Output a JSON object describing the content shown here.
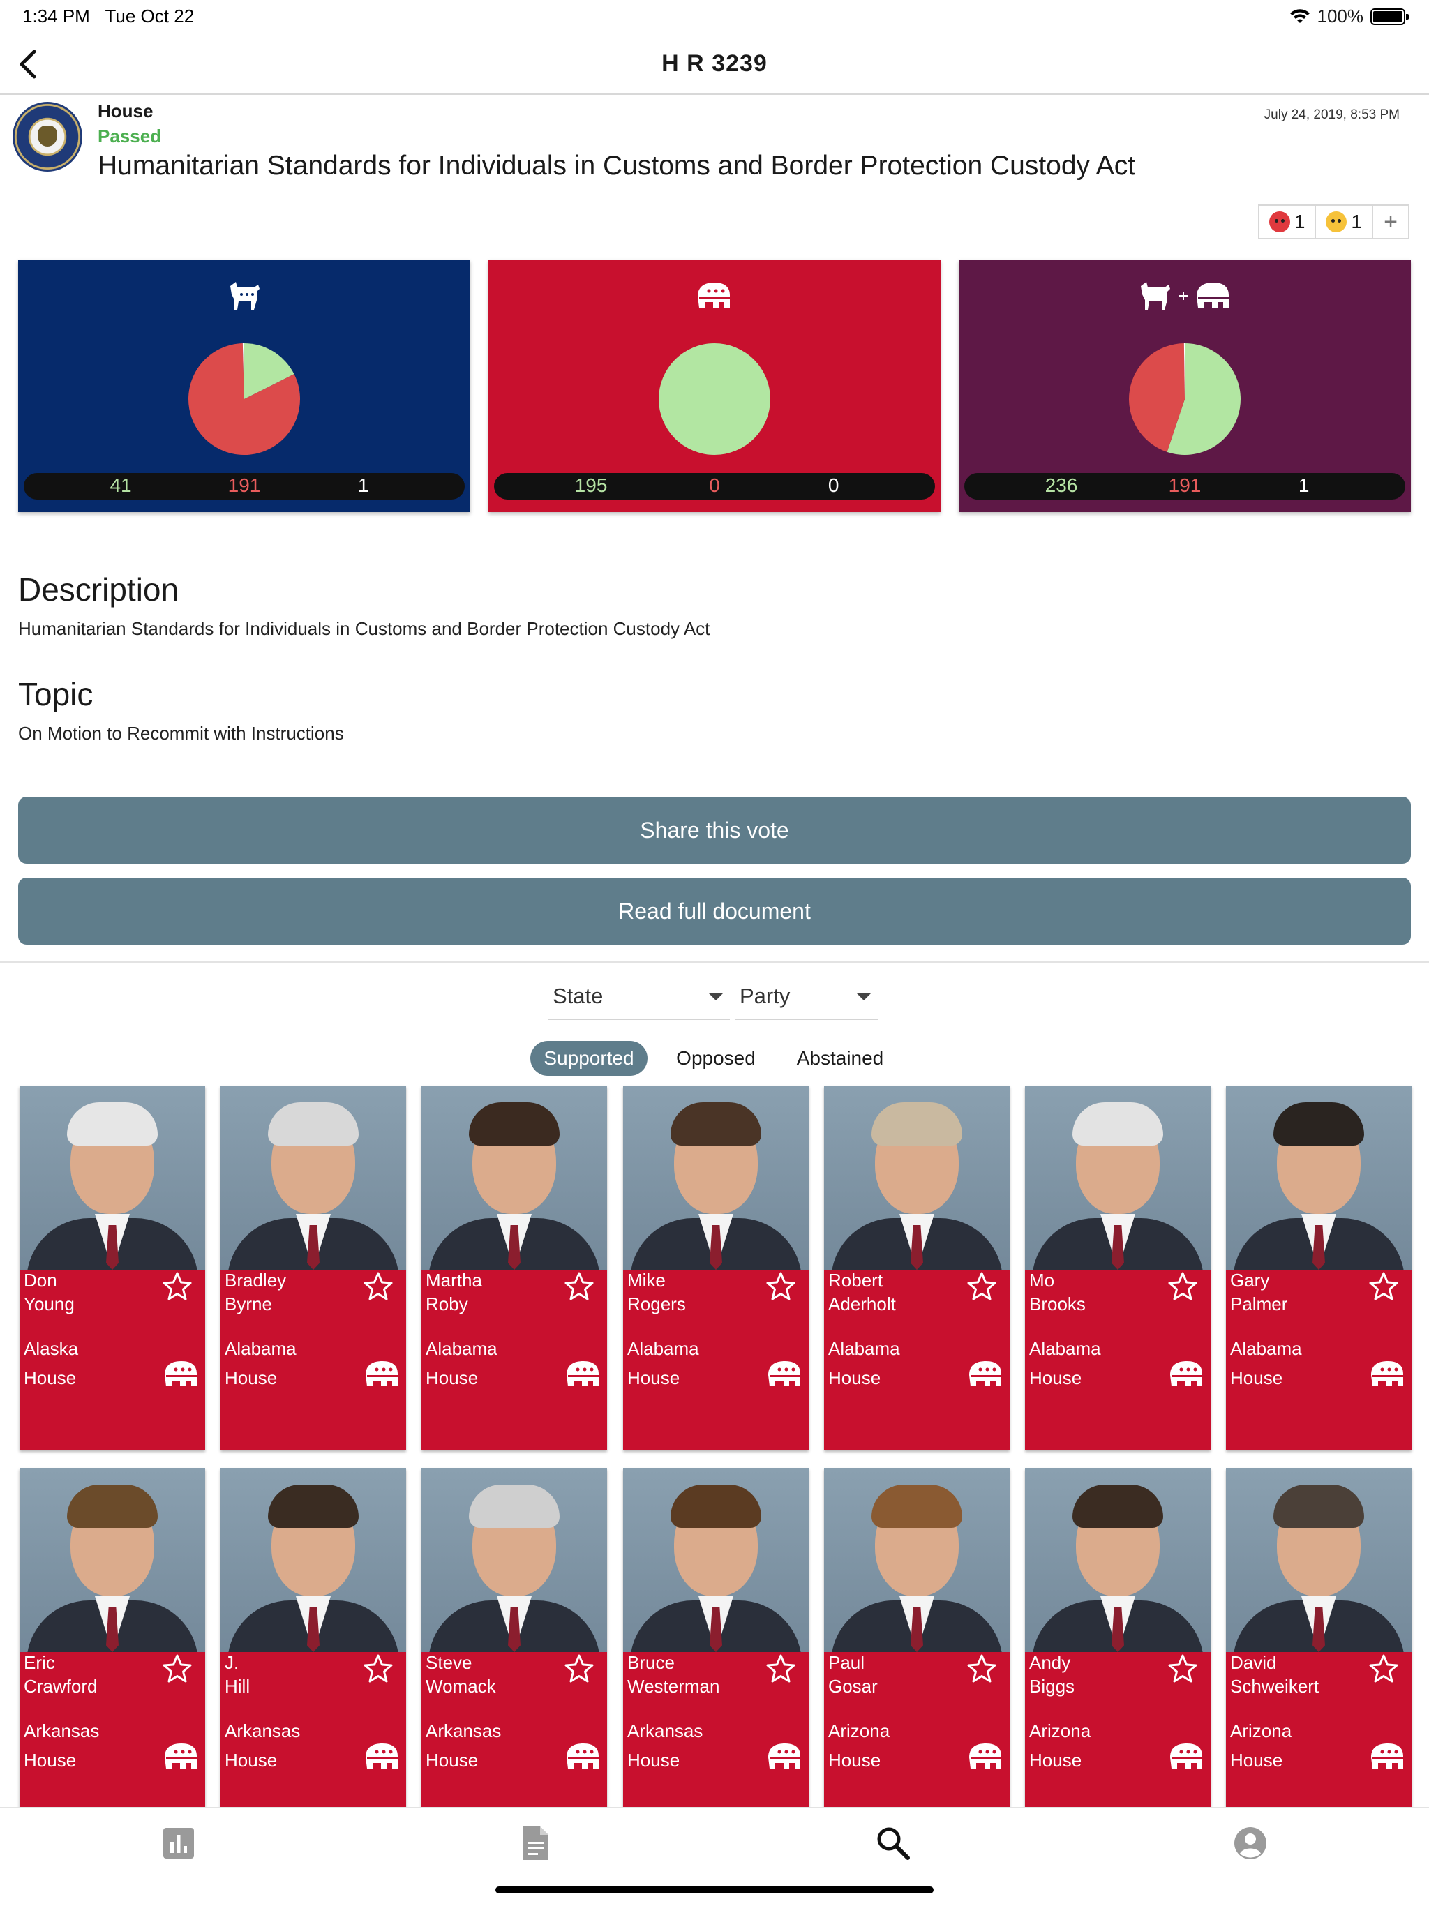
{
  "status_bar": {
    "time": "1:34 PM",
    "date": "Tue Oct 22",
    "battery": "100%"
  },
  "nav": {
    "title": "H R 3239",
    "back_icon": "chevron-left-icon"
  },
  "bill": {
    "chamber": "House",
    "status": "Passed",
    "name": "Humanitarian Standards for Individuals in Customs and Border Protection Custody Act",
    "date": "July 24, 2019, 8:53 PM",
    "status_color": "#4caf50"
  },
  "reactions": [
    {
      "icon": "angry-face-icon",
      "count": "1"
    },
    {
      "icon": "crying-face-icon",
      "count": "1"
    }
  ],
  "reaction_add_label": "+",
  "party_results": [
    {
      "party": "Democrat",
      "icon": "donkey-icon",
      "bg": "#062a6b",
      "yea": 41,
      "nay": 191,
      "abstain": 1
    },
    {
      "party": "Republican",
      "icon": "elephant-icon",
      "bg": "#c8102e",
      "yea": 195,
      "nay": 0,
      "abstain": 0
    },
    {
      "party": "Combined",
      "icon": "donkey-plus-elephant-icon",
      "bg": "#5e1846",
      "yea": 236,
      "nay": 191,
      "abstain": 1
    }
  ],
  "colors": {
    "yea": "#b2e6a2",
    "nay": "#dc4b4b",
    "button": "#5f7d8b",
    "rep_card": "#c8102e"
  },
  "description": {
    "heading": "Description",
    "text": "Humanitarian Standards for Individuals in Customs and Border Protection Custody Act"
  },
  "topic": {
    "heading": "Topic",
    "text": "On Motion to Recommit with Instructions"
  },
  "buttons": {
    "share": "Share this vote",
    "read": "Read full document"
  },
  "filters": {
    "state": "State",
    "party": "Party"
  },
  "tabs": [
    {
      "label": "Supported",
      "active": true
    },
    {
      "label": "Opposed",
      "active": false
    },
    {
      "label": "Abstained",
      "active": false
    }
  ],
  "members": [
    {
      "first": "Don",
      "last": "Young",
      "state": "Alaska",
      "chamber": "House",
      "party": "Republican"
    },
    {
      "first": "Bradley",
      "last": "Byrne",
      "state": "Alabama",
      "chamber": "House",
      "party": "Republican"
    },
    {
      "first": "Martha",
      "last": "Roby",
      "state": "Alabama",
      "chamber": "House",
      "party": "Republican"
    },
    {
      "first": "Mike",
      "last": "Rogers",
      "state": "Alabama",
      "chamber": "House",
      "party": "Republican"
    },
    {
      "first": "Robert",
      "last": "Aderholt",
      "state": "Alabama",
      "chamber": "House",
      "party": "Republican"
    },
    {
      "first": "Mo",
      "last": "Brooks",
      "state": "Alabama",
      "chamber": "House",
      "party": "Republican"
    },
    {
      "first": "Gary",
      "last": "Palmer",
      "state": "Alabama",
      "chamber": "House",
      "party": "Republican"
    },
    {
      "first": "Eric",
      "last": "Crawford",
      "state": "Arkansas",
      "chamber": "House",
      "party": "Republican"
    },
    {
      "first": "J.",
      "last": "Hill",
      "state": "Arkansas",
      "chamber": "House",
      "party": "Republican"
    },
    {
      "first": "Steve",
      "last": "Womack",
      "state": "Arkansas",
      "chamber": "House",
      "party": "Republican"
    },
    {
      "first": "Bruce",
      "last": "Westerman",
      "state": "Arkansas",
      "chamber": "House",
      "party": "Republican"
    },
    {
      "first": "Paul",
      "last": "Gosar",
      "state": "Arizona",
      "chamber": "House",
      "party": "Republican"
    },
    {
      "first": "Andy",
      "last": "Biggs",
      "state": "Arizona",
      "chamber": "House",
      "party": "Republican"
    },
    {
      "first": "David",
      "last": "Schweikert",
      "state": "Arizona",
      "chamber": "House",
      "party": "Republican"
    }
  ],
  "tab_bar": [
    {
      "icon": "bar-chart-icon",
      "active": false
    },
    {
      "icon": "document-icon",
      "active": false
    },
    {
      "icon": "search-icon",
      "active": true
    },
    {
      "icon": "account-icon",
      "active": false
    }
  ]
}
